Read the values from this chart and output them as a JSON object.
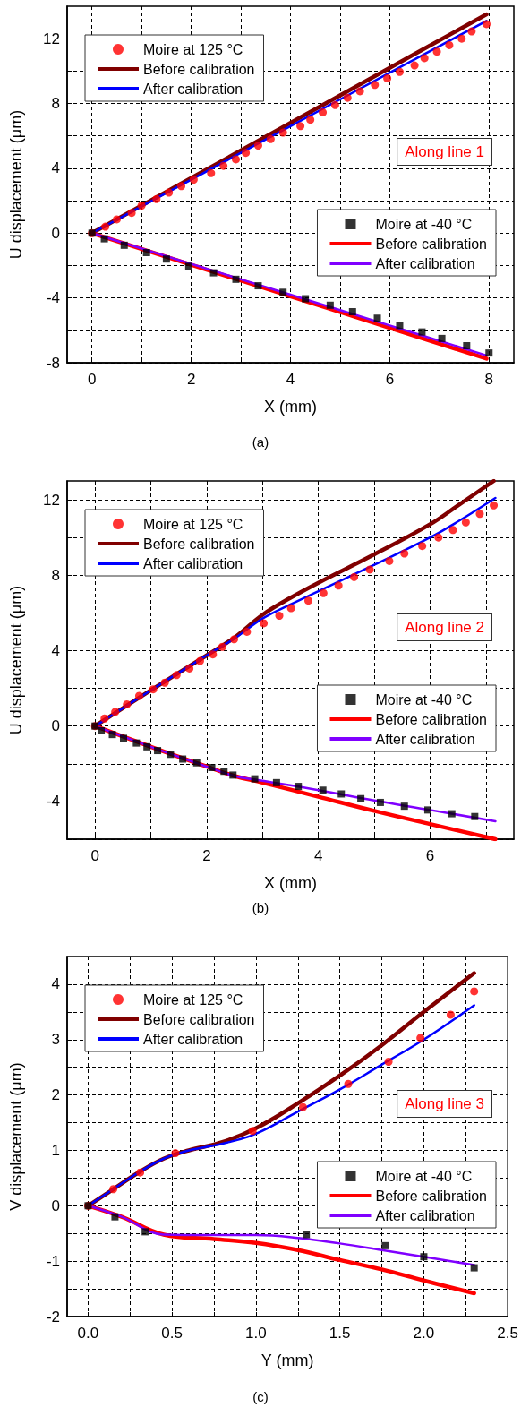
{
  "chart_data": [
    {
      "type": "scatter",
      "xlabel": "X (mm)",
      "ylabel": "U displacement (μm)",
      "annotations": [
        "Along line 1",
        "(a)"
      ],
      "xlim": [
        -0.5,
        8.5
      ],
      "ylim": [
        -8,
        14
      ],
      "xticks": [
        0,
        {
          "value": 1,
          "label": null
        },
        2,
        {
          "value": 3,
          "label": null
        },
        4,
        {
          "value": 5,
          "label": null
        },
        6,
        {
          "value": 7,
          "label": null
        },
        8
      ],
      "yticks": [
        -8,
        {
          "value": -6,
          "label": null
        },
        -4,
        {
          "value": -2,
          "label": null
        },
        0,
        {
          "value": 2,
          "label": null
        },
        4,
        {
          "value": 6,
          "label": null
        },
        8,
        {
          "value": 10,
          "label": null
        },
        12
      ],
      "grid": true,
      "legend": [
        "top left",
        "lower right"
      ],
      "series": [
        {
          "name": "Moire at 125 °C",
          "marker": "circle",
          "color": "#ff0000",
          "x": [
            0,
            0.27,
            0.5,
            0.8,
            1.0,
            1.3,
            1.55,
            1.8,
            2.05,
            2.4,
            2.65,
            2.9,
            3.1,
            3.35,
            3.6,
            3.85,
            4.2,
            4.4,
            4.65,
            4.9,
            5.15,
            5.4,
            5.7,
            5.95,
            6.2,
            6.5,
            6.7,
            6.95,
            7.2,
            7.45,
            7.65,
            7.95
          ],
          "values": [
            0,
            0.4,
            0.85,
            1.25,
            1.7,
            2.1,
            2.5,
            2.9,
            3.3,
            3.7,
            4.15,
            4.55,
            4.95,
            5.4,
            5.8,
            6.2,
            6.6,
            7.0,
            7.45,
            7.9,
            8.35,
            8.75,
            9.15,
            9.55,
            9.95,
            10.35,
            10.8,
            11.2,
            11.6,
            12.0,
            12.45,
            12.9
          ]
        },
        {
          "name": "Before calibration",
          "type": "line",
          "marker": "none",
          "color": "#800000",
          "x": [
            0,
            2,
            4,
            6,
            7.95
          ],
          "values": [
            0,
            3.4,
            6.8,
            10.2,
            13.5
          ]
        },
        {
          "name": "After calibration",
          "type": "line",
          "marker": "none",
          "color": "#0000ff",
          "x": [
            0,
            2,
            4,
            6,
            7.95
          ],
          "values": [
            0,
            3.3,
            6.6,
            9.9,
            13.1
          ]
        },
        {
          "name": "Moire at -40 °C",
          "marker": "square",
          "color": "#000000",
          "x": [
            0,
            0.25,
            0.65,
            1.1,
            1.5,
            1.95,
            2.45,
            2.9,
            3.35,
            3.85,
            4.3,
            4.8,
            5.25,
            5.75,
            6.2,
            6.65,
            7.05,
            7.55,
            8.0
          ],
          "values": [
            0,
            -0.35,
            -0.75,
            -1.2,
            -1.6,
            -2.05,
            -2.45,
            -2.85,
            -3.25,
            -3.65,
            -4.05,
            -4.45,
            -4.85,
            -5.25,
            -5.7,
            -6.1,
            -6.5,
            -6.95,
            -7.4
          ]
        },
        {
          "name": "Before calibration",
          "type": "line",
          "marker": "none",
          "color": "#ff0000",
          "x": [
            0,
            2,
            4,
            6,
            7.95
          ],
          "values": [
            0,
            -1.95,
            -3.9,
            -5.85,
            -7.75
          ]
        },
        {
          "name": "After calibration",
          "type": "line",
          "marker": "none",
          "color": "#8000ff",
          "x": [
            0,
            2,
            4,
            6,
            7.95
          ],
          "values": [
            0,
            -1.9,
            -3.8,
            -5.7,
            -7.55
          ]
        }
      ]
    },
    {
      "type": "scatter",
      "xlabel": "X (mm)",
      "ylabel": "U displacement (μm)",
      "annotations": [
        "Along line 2",
        "(b)"
      ],
      "xlim": [
        -0.5,
        7.5
      ],
      "ylim": [
        -6,
        13
      ],
      "xticks": [
        0,
        {
          "value": 1,
          "label": null
        },
        2,
        {
          "value": 3,
          "label": null
        },
        4,
        {
          "value": 5,
          "label": null
        },
        6,
        {
          "value": 7,
          "label": null
        }
      ],
      "yticks": [
        {
          "value": -6,
          "label": null
        },
        -4,
        {
          "value": -2,
          "label": null
        },
        0,
        {
          "value": 2,
          "label": null
        },
        4,
        {
          "value": 6,
          "label": null
        },
        8,
        {
          "value": 10,
          "label": null
        },
        12
      ],
      "grid": true,
      "legend": [
        "top left",
        "lower right"
      ],
      "series": [
        {
          "name": "Moire at 125 °C",
          "marker": "circle",
          "color": "#ff0000",
          "x": [
            0,
            0.17,
            0.36,
            0.57,
            0.79,
            1.04,
            1.25,
            1.46,
            1.69,
            1.88,
            2.11,
            2.28,
            2.49,
            2.72,
            3.02,
            3.3,
            3.51,
            3.82,
            4.09,
            4.36,
            4.64,
            4.92,
            5.27,
            5.54,
            5.86,
            6.15,
            6.41,
            6.64,
            6.89,
            7.14
          ],
          "values": [
            0,
            0.4,
            0.75,
            1.15,
            1.6,
            1.95,
            2.3,
            2.7,
            3.05,
            3.45,
            3.8,
            4.2,
            4.6,
            5.0,
            5.45,
            5.85,
            6.25,
            6.65,
            7.05,
            7.45,
            7.9,
            8.3,
            8.75,
            9.15,
            9.55,
            10.0,
            10.4,
            10.8,
            11.25,
            11.7
          ]
        },
        {
          "name": "Before calibration",
          "type": "line",
          "marker": "none",
          "color": "#800000",
          "x": [
            0,
            1,
            2,
            2.5,
            3,
            3.5,
            4,
            5,
            6,
            6.5,
            7.14
          ],
          "values": [
            0,
            1.9,
            3.75,
            4.7,
            5.9,
            6.8,
            7.6,
            9.1,
            10.7,
            11.7,
            13.0
          ]
        },
        {
          "name": "After calibration",
          "type": "line",
          "marker": "none",
          "color": "#0000ff",
          "x": [
            0,
            1,
            2,
            2.5,
            3,
            3.5,
            4,
            5,
            6,
            6.5,
            7.17
          ],
          "values": [
            0,
            1.9,
            3.75,
            4.65,
            5.7,
            6.45,
            7.15,
            8.55,
            10.0,
            10.85,
            12.1
          ]
        },
        {
          "name": "Moire at -40 °C",
          "marker": "square",
          "color": "#000000",
          "x": [
            0,
            0.11,
            0.31,
            0.51,
            0.74,
            0.93,
            1.12,
            1.35,
            1.57,
            1.82,
            2.09,
            2.31,
            2.47,
            2.86,
            3.25,
            3.64,
            4.08,
            4.41,
            4.76,
            5.11,
            5.54,
            5.96,
            6.39,
            6.8
          ],
          "values": [
            0,
            -0.25,
            -0.45,
            -0.65,
            -0.9,
            -1.1,
            -1.3,
            -1.5,
            -1.75,
            -1.95,
            -2.2,
            -2.4,
            -2.6,
            -2.8,
            -3.0,
            -3.2,
            -3.4,
            -3.6,
            -3.85,
            -4.05,
            -4.25,
            -4.45,
            -4.65,
            -4.8
          ]
        },
        {
          "name": "Before calibration",
          "type": "line",
          "marker": "none",
          "color": "#ff0000",
          "x": [
            0,
            1,
            2,
            2.5,
            3,
            4,
            5,
            6,
            7.17
          ],
          "values": [
            0,
            -1.1,
            -2.15,
            -2.65,
            -3.0,
            -3.75,
            -4.5,
            -5.2,
            -6.0
          ]
        },
        {
          "name": "After calibration",
          "type": "line",
          "marker": "none",
          "color": "#8000ff",
          "x": [
            0,
            1,
            2,
            2.5,
            3,
            4,
            5,
            6,
            7.17
          ],
          "values": [
            0,
            -1.1,
            -2.15,
            -2.65,
            -2.9,
            -3.4,
            -3.95,
            -4.45,
            -5.05
          ]
        }
      ]
    },
    {
      "type": "scatter",
      "xlabel": "Y (mm)",
      "ylabel": "V displacement (μm)",
      "annotations": [
        "Along line 3",
        "(c)"
      ],
      "xlim": [
        -0.125,
        2.5
      ],
      "ylim": [
        -2,
        4.5
      ],
      "xticks": [
        {
          "value": 0,
          "label": "0.0"
        },
        {
          "value": 0.25,
          "label": null
        },
        0.5,
        {
          "value": 0.75,
          "label": null
        },
        {
          "value": 1,
          "label": "1.0"
        },
        {
          "value": 1.25,
          "label": null
        },
        1.5,
        {
          "value": 1.75,
          "label": null
        },
        {
          "value": 2,
          "label": "2.0"
        },
        {
          "value": 2.25,
          "label": null
        },
        2.5
      ],
      "yticks": [
        -2,
        {
          "value": -1.5,
          "label": null
        },
        -1,
        {
          "value": -0.5,
          "label": null
        },
        0,
        {
          "value": 0.5,
          "label": null
        },
        1,
        {
          "value": 1.5,
          "label": null
        },
        2,
        {
          "value": 2.5,
          "label": null
        },
        3,
        {
          "value": 3.5,
          "label": null
        },
        4
      ],
      "grid": true,
      "legend": [
        "top left",
        "lower right"
      ],
      "series": [
        {
          "name": "Moire at 125 °C",
          "marker": "circle",
          "color": "#ff0000",
          "x": [
            0,
            0.15,
            0.31,
            0.52,
            0.98,
            1.28,
            1.55,
            1.79,
            1.98,
            2.16,
            2.3
          ],
          "values": [
            0,
            0.3,
            0.6,
            0.95,
            1.35,
            1.78,
            2.2,
            2.6,
            3.03,
            3.45,
            3.87
          ]
        },
        {
          "name": "Before calibration",
          "type": "line",
          "marker": "none",
          "color": "#800000",
          "x": [
            0,
            0.15,
            0.3,
            0.45,
            0.6,
            0.8,
            1.0,
            1.25,
            1.5,
            1.75,
            2.0,
            2.3
          ],
          "values": [
            0,
            0.3,
            0.6,
            0.85,
            1.0,
            1.15,
            1.4,
            1.85,
            2.35,
            2.9,
            3.5,
            4.2
          ]
        },
        {
          "name": "After calibration",
          "type": "line",
          "marker": "none",
          "color": "#0000ff",
          "x": [
            0,
            0.15,
            0.3,
            0.45,
            0.6,
            0.8,
            1.0,
            1.25,
            1.5,
            1.75,
            2.0,
            2.3
          ],
          "values": [
            0,
            0.3,
            0.6,
            0.85,
            1.0,
            1.12,
            1.3,
            1.7,
            2.1,
            2.55,
            3.0,
            3.62
          ]
        },
        {
          "name": "Moire at -40 °C",
          "marker": "square",
          "color": "#000000",
          "x": [
            0,
            0.16,
            0.34,
            1.3,
            1.77,
            2.0,
            2.3
          ],
          "values": [
            0,
            -0.2,
            -0.47,
            -0.52,
            -0.72,
            -0.92,
            -1.12
          ]
        },
        {
          "name": "Before calibration",
          "type": "line",
          "marker": "none",
          "color": "#ff0000",
          "x": [
            0,
            0.2,
            0.45,
            0.75,
            1.0,
            1.25,
            1.5,
            1.75,
            2.0,
            2.3
          ],
          "values": [
            0,
            -0.2,
            -0.52,
            -0.6,
            -0.67,
            -0.8,
            -0.98,
            -1.15,
            -1.35,
            -1.58
          ]
        },
        {
          "name": "After calibration",
          "type": "line",
          "marker": "none",
          "color": "#8000ff",
          "x": [
            0,
            0.2,
            0.45,
            0.75,
            1.0,
            1.25,
            1.5,
            1.75,
            2.0,
            2.3
          ],
          "values": [
            0,
            -0.2,
            -0.52,
            -0.53,
            -0.53,
            -0.58,
            -0.68,
            -0.8,
            -0.92,
            -1.07
          ]
        }
      ]
    }
  ]
}
